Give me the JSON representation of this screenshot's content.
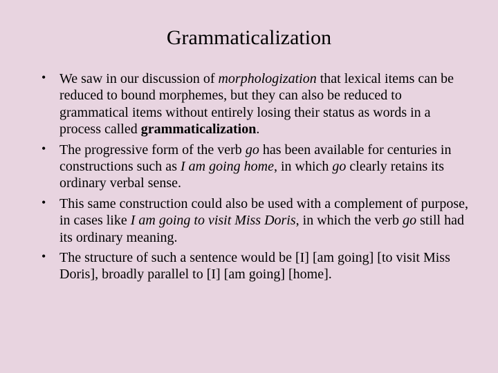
{
  "background_color": "#e8d4e0",
  "text_color": "#000000",
  "font_family": "Times New Roman",
  "title": {
    "text": "Grammaticalization",
    "fontsize": 30
  },
  "body_fontsize": 20,
  "bullets": [
    {
      "segments": [
        {
          "text": "We saw in our discussion of ",
          "style": "normal"
        },
        {
          "text": "morphologization",
          "style": "italic"
        },
        {
          "text": " that lexical items can be reduced to bound morphemes, but they can also be reduced to grammatical items without entirely losing their status as words in a process called ",
          "style": "normal"
        },
        {
          "text": "grammaticalization",
          "style": "bold"
        },
        {
          "text": ".",
          "style": "normal"
        }
      ]
    },
    {
      "segments": [
        {
          "text": "The progressive form of the verb ",
          "style": "normal"
        },
        {
          "text": "go",
          "style": "italic"
        },
        {
          "text": " has been available for centuries in constructions such as ",
          "style": "normal"
        },
        {
          "text": "I am going home",
          "style": "italic"
        },
        {
          "text": ", in which ",
          "style": "normal"
        },
        {
          "text": "go",
          "style": "italic"
        },
        {
          "text": " clearly retains its ordinary verbal sense.",
          "style": "normal"
        }
      ]
    },
    {
      "segments": [
        {
          "text": "This same construction could also be used with a complement of purpose, in cases like ",
          "style": "normal"
        },
        {
          "text": "I am going to visit Miss Doris",
          "style": "italic"
        },
        {
          "text": ", in which the verb ",
          "style": "normal"
        },
        {
          "text": "go",
          "style": "italic"
        },
        {
          "text": " still had its ordinary meaning.",
          "style": "normal"
        }
      ]
    },
    {
      "segments": [
        {
          "text": "The structure of such a sentence would be [I] [am going] [to visit Miss Doris], broadly parallel to [I] [am going] [home].",
          "style": "normal"
        }
      ]
    }
  ]
}
